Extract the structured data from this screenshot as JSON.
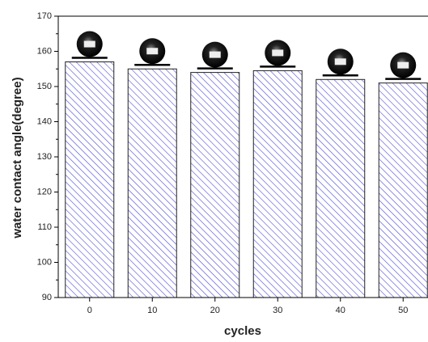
{
  "chart_data": {
    "type": "bar",
    "x_label": "cycles",
    "y_label": "water contact angle(degree)",
    "categories": [
      "0",
      "10",
      "20",
      "30",
      "40",
      "50"
    ],
    "values": [
      157,
      155,
      154,
      154.5,
      152,
      151
    ],
    "color": "#4a4adc",
    "ylim": [
      90,
      170
    ],
    "yticks": [
      90,
      100,
      110,
      120,
      130,
      140,
      150,
      160,
      170
    ]
  }
}
